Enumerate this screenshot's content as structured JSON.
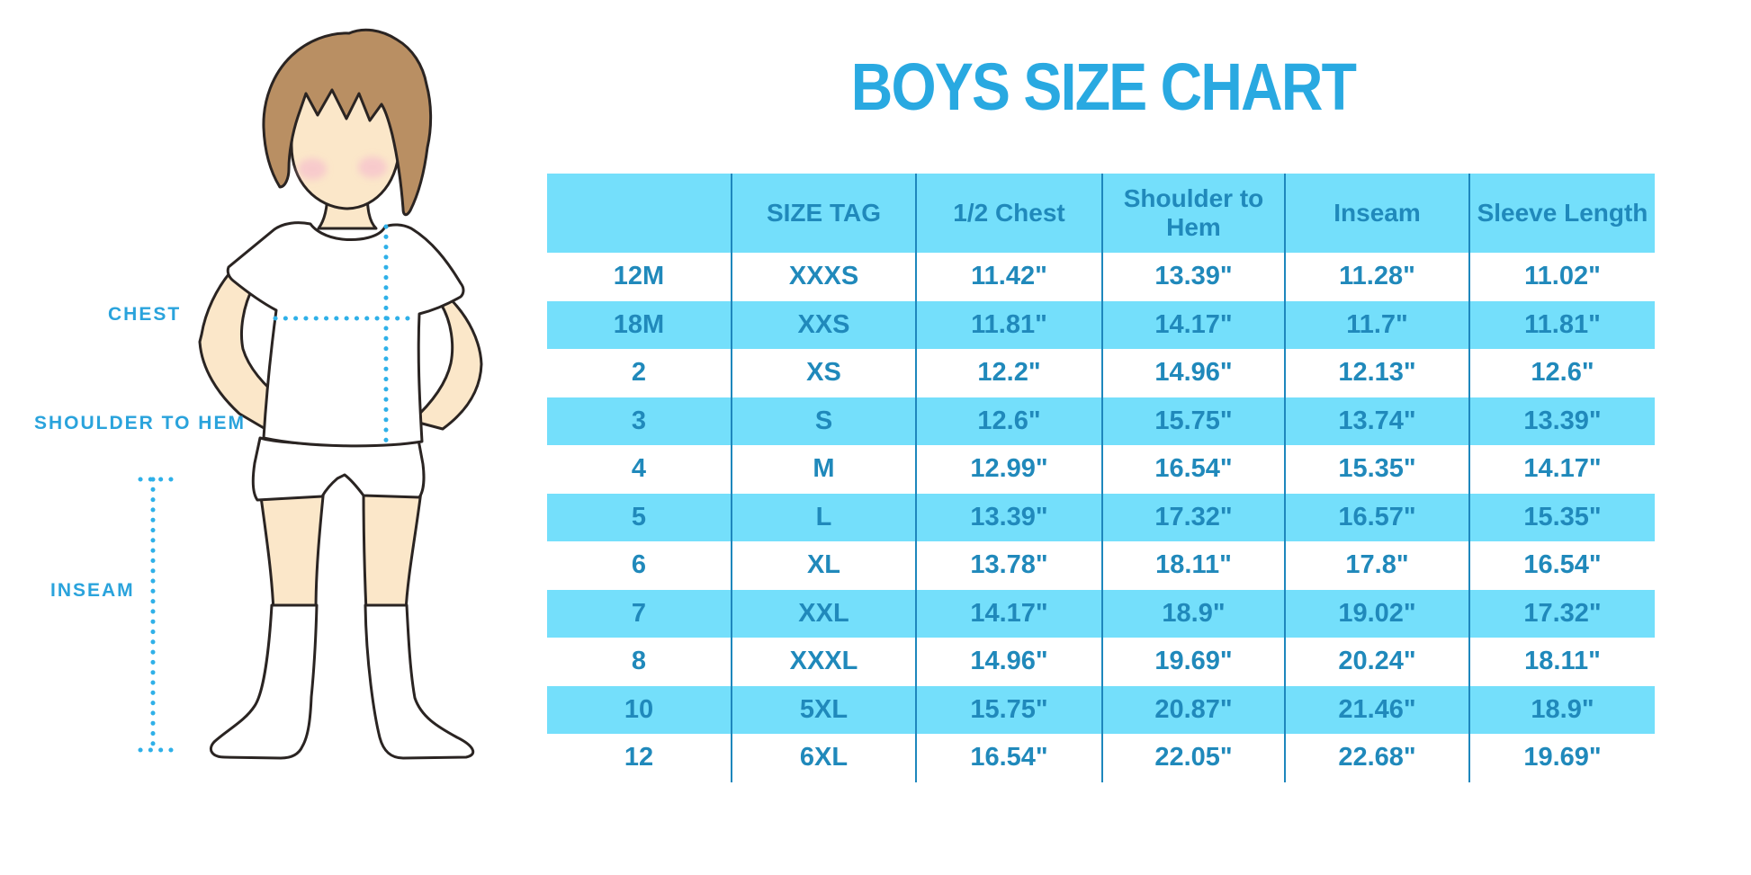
{
  "title": "BOYS SIZE CHART",
  "diagram": {
    "labels": {
      "chest": "CHEST",
      "shoulder_to_hem": "SHOULDER TO HEM",
      "inseam": "INSEAM"
    },
    "colors": {
      "label_blue": "#2aa3dc",
      "dotted_line_blue": "#2fb0e8",
      "skin": "#fbe7c9",
      "hair": "#b98f63",
      "blush": "#f6bfcd",
      "outline": "#2a2422"
    }
  },
  "chart_data": {
    "type": "table",
    "title": "BOYS SIZE CHART",
    "columns": [
      "",
      "SIZE TAG",
      "1/2 Chest",
      "Shoulder to Hem",
      "Inseam",
      "Sleeve Length"
    ],
    "rows": [
      [
        "12M",
        "XXXS",
        "11.42\"",
        "13.39\"",
        "11.28\"",
        "11.02\""
      ],
      [
        "18M",
        "XXS",
        "11.81\"",
        "14.17\"",
        "11.7\"",
        "11.81\""
      ],
      [
        "2",
        "XS",
        "12.2\"",
        "14.96\"",
        "12.13\"",
        "12.6\""
      ],
      [
        "3",
        "S",
        "12.6\"",
        "15.75\"",
        "13.74\"",
        "13.39\""
      ],
      [
        "4",
        "M",
        "12.99\"",
        "16.54\"",
        "15.35\"",
        "14.17\""
      ],
      [
        "5",
        "L",
        "13.39\"",
        "17.32\"",
        "16.57\"",
        "15.35\""
      ],
      [
        "6",
        "XL",
        "13.78\"",
        "18.11\"",
        "17.8\"",
        "16.54\""
      ],
      [
        "7",
        "XXL",
        "14.17\"",
        "18.9\"",
        "19.02\"",
        "17.32\""
      ],
      [
        "8",
        "XXXL",
        "14.96\"",
        "19.69\"",
        "20.24\"",
        "18.11\""
      ],
      [
        "10",
        "5XL",
        "15.75\"",
        "20.87\"",
        "21.46\"",
        "18.9\""
      ],
      [
        "12",
        "6XL",
        "16.54\"",
        "22.05\"",
        "22.68\"",
        "19.69\""
      ]
    ],
    "colors": {
      "header_fill": "#74dffb",
      "row_alt_fill": "#74dffb",
      "text": "#2089bb",
      "divider": "#1e87bd"
    }
  }
}
